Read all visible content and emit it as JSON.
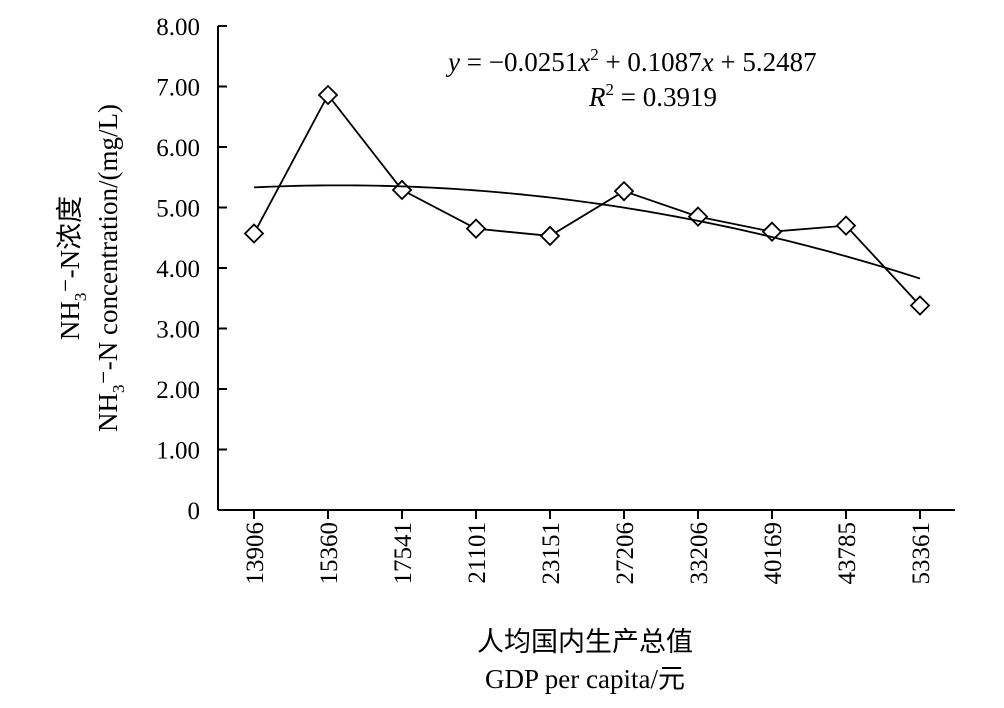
{
  "chart_data": {
    "type": "line",
    "categories": [
      "13906",
      "15360",
      "17541",
      "21101",
      "23151",
      "27206",
      "33206",
      "40169",
      "43785",
      "53361"
    ],
    "series": [
      {
        "values": [
          4.57,
          6.86,
          5.29,
          4.65,
          4.53,
          5.27,
          4.85,
          4.6,
          4.7,
          3.38
        ],
        "marker": "diamond",
        "color": "#000000"
      }
    ],
    "trendline": {
      "type": "polynomial",
      "order": 2,
      "equation_parts": {
        "y": "y",
        "eq1": " = −0.0251",
        "x1": "x",
        "sup1": "2",
        "eq2": " + 0.1087",
        "x2": "x",
        "eq3": " + 5.2487"
      },
      "r2_parts": {
        "R": "R",
        "sup": "2",
        "rest": " = 0.3919"
      }
    },
    "ylabel": {
      "cn_main": "NH",
      "cn_sub": "3",
      "cn_rest": "⁻-N浓度",
      "en_main": "NH",
      "en_sub": "3",
      "en_rest": "⁻-N concentration/(mg/L)"
    },
    "xlabel": {
      "cn": "人均国内生产总值",
      "en": "GDP per capita/元"
    },
    "y_ticks": [
      "0",
      "1.00",
      "2.00",
      "3.00",
      "4.00",
      "5.00",
      "6.00",
      "7.00",
      "8.00"
    ],
    "ylim": [
      0,
      8
    ],
    "grid": false,
    "legend": "none"
  }
}
